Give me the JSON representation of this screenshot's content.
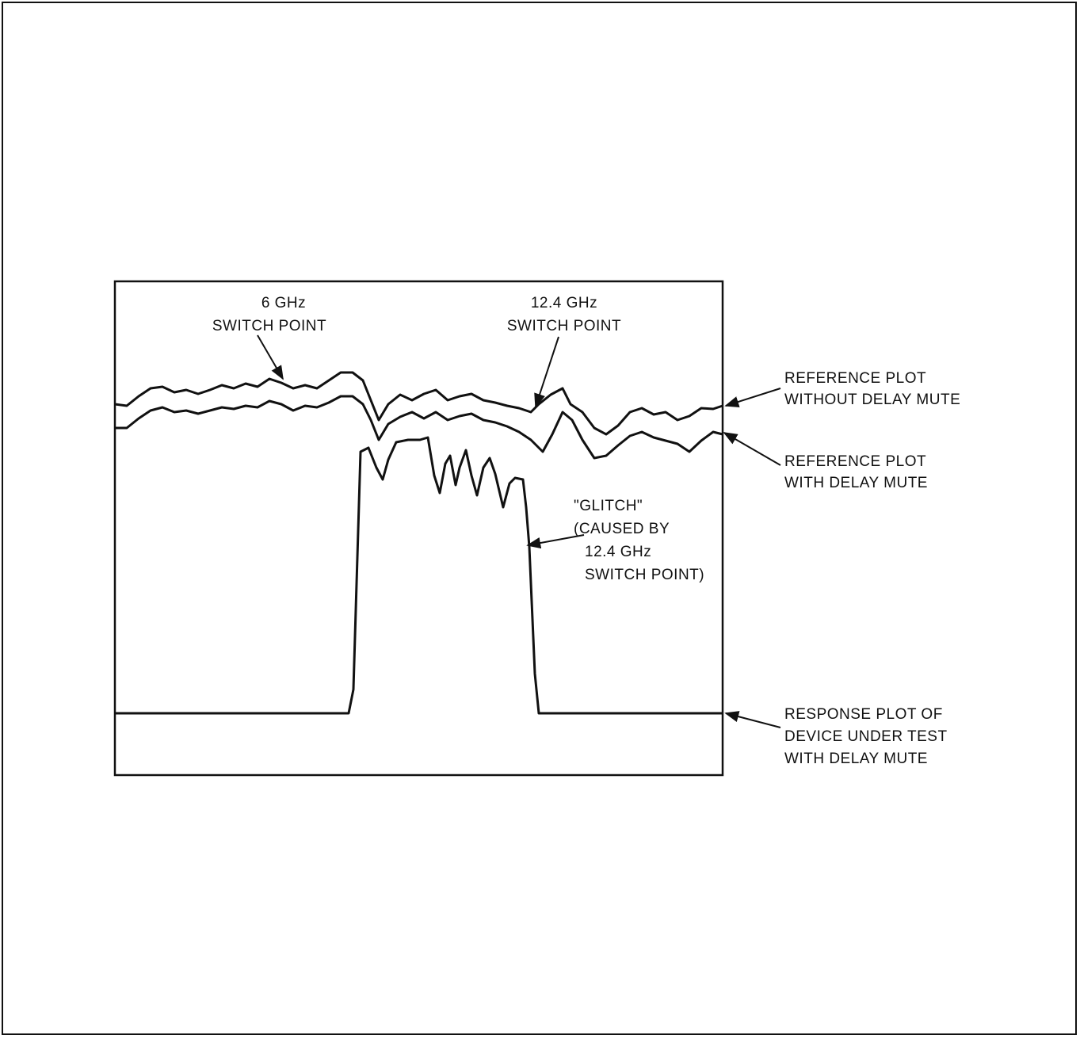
{
  "annotations": [
    {
      "lines": [
        "6 GHz",
        "SWITCH POINT"
      ]
    },
    {
      "lines": [
        "12.4 GHz",
        "SWITCH POINT"
      ]
    },
    {
      "lines": [
        "REFERENCE PLOT",
        "WITHOUT DELAY MUTE"
      ]
    },
    {
      "lines": [
        "REFERENCE PLOT",
        "WITH DELAY MUTE"
      ]
    },
    {
      "lines": [
        "\"GLITCH\"",
        "(CAUSED BY",
        "12.4 GHz",
        "SWITCH POINT)"
      ]
    },
    {
      "lines": [
        "RESPONSE PLOT OF",
        "DEVICE UNDER TEST",
        "WITH DELAY MUTE"
      ]
    }
  ]
}
